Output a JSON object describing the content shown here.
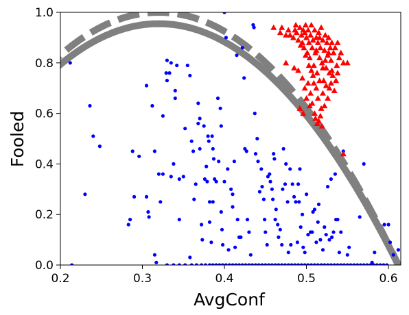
{
  "chart_data": {
    "type": "scatter",
    "xlabel": "AvgConf",
    "ylabel": "Fooled",
    "xlim": [
      0.2,
      0.615
    ],
    "ylim": [
      0.0,
      1.0
    ],
    "x_ticks": [
      0.2,
      0.3,
      0.4,
      0.5,
      0.6
    ],
    "x_tick_labels": [
      "0.2",
      "0.3",
      "0.4",
      "0.5",
      "0.6"
    ],
    "y_ticks": [
      0.0,
      0.2,
      0.4,
      0.6,
      0.8,
      1.0
    ],
    "y_tick_labels": [
      "0.0",
      "0.2",
      "0.4",
      "0.6",
      "0.8",
      "1.0"
    ],
    "grid": false,
    "colors": {
      "blue": "#0000ff",
      "red": "#ff0000",
      "curve": "#808080"
    },
    "series": [
      {
        "marker": "circle",
        "color": "#0000ff",
        "points": [
          [
            0.212,
            0.8
          ],
          [
            0.214,
            0.0
          ],
          [
            0.23,
            0.28
          ],
          [
            0.236,
            0.63
          ],
          [
            0.24,
            0.51
          ],
          [
            0.248,
            0.47
          ],
          [
            0.283,
            0.16
          ],
          [
            0.285,
            0.18
          ],
          [
            0.288,
            0.45
          ],
          [
            0.29,
            0.27
          ],
          [
            0.296,
            0.43
          ],
          [
            0.305,
            0.71
          ],
          [
            0.305,
            0.27
          ],
          [
            0.307,
            0.21
          ],
          [
            0.308,
            0.19
          ],
          [
            0.312,
            0.63
          ],
          [
            0.315,
            0.45
          ],
          [
            0.315,
            0.04
          ],
          [
            0.317,
            0.01
          ],
          [
            0.32,
            0.36
          ],
          [
            0.322,
            0.25
          ],
          [
            0.325,
            0.59
          ],
          [
            0.325,
            0.36
          ],
          [
            0.329,
            0.76
          ],
          [
            0.33,
            0.81
          ],
          [
            0.33,
            0.73
          ],
          [
            0.333,
            0.76
          ],
          [
            0.335,
            0.8
          ],
          [
            0.335,
            0.35
          ],
          [
            0.338,
            0.4
          ],
          [
            0.34,
            0.69
          ],
          [
            0.34,
            0.66
          ],
          [
            0.342,
            0.79
          ],
          [
            0.345,
            0.34
          ],
          [
            0.345,
            0.18
          ],
          [
            0.35,
            0.35
          ],
          [
            0.352,
            0.54
          ],
          [
            0.355,
            0.79
          ],
          [
            0.358,
            0.75
          ],
          [
            0.358,
            0.03
          ],
          [
            0.36,
            0.49
          ],
          [
            0.362,
            0.45
          ],
          [
            0.363,
            0.26
          ],
          [
            0.365,
            0.32
          ],
          [
            0.368,
            0.64
          ],
          [
            0.368,
            0.56
          ],
          [
            0.37,
            0.58
          ],
          [
            0.37,
            0.46
          ],
          [
            0.372,
            0.16
          ],
          [
            0.373,
            0.1
          ],
          [
            0.375,
            0.55
          ],
          [
            0.376,
            0.34
          ],
          [
            0.378,
            0.39
          ],
          [
            0.379,
            0.33
          ],
          [
            0.38,
            0.51
          ],
          [
            0.381,
            0.49
          ],
          [
            0.382,
            0.25
          ],
          [
            0.382,
            0.17
          ],
          [
            0.384,
            0.09
          ],
          [
            0.385,
            0.51
          ],
          [
            0.386,
            0.25
          ],
          [
            0.386,
            0.46
          ],
          [
            0.387,
            0.42
          ],
          [
            0.388,
            0.34
          ],
          [
            0.39,
            0.33
          ],
          [
            0.392,
            0.66
          ],
          [
            0.393,
            0.41
          ],
          [
            0.395,
            0.62
          ],
          [
            0.396,
            0.55
          ],
          [
            0.396,
            0.21
          ],
          [
            0.397,
            0.14
          ],
          [
            0.398,
            0.08
          ],
          [
            0.4,
            0.33
          ],
          [
            0.4,
            1.0
          ],
          [
            0.402,
            0.9
          ],
          [
            0.404,
            0.38
          ],
          [
            0.405,
            0.06
          ],
          [
            0.408,
            0.3
          ],
          [
            0.41,
            0.23
          ],
          [
            0.41,
            0.28
          ],
          [
            0.412,
            0.41
          ],
          [
            0.413,
            0.07
          ],
          [
            0.415,
            0.83
          ],
          [
            0.416,
            0.18
          ],
          [
            0.418,
            0.11
          ],
          [
            0.42,
            0.11
          ],
          [
            0.422,
            0.86
          ],
          [
            0.424,
            0.74
          ],
          [
            0.425,
            0.46
          ],
          [
            0.427,
            0.45
          ],
          [
            0.428,
            0.18
          ],
          [
            0.43,
            0.13
          ],
          [
            0.432,
            0.04
          ],
          [
            0.435,
            0.95
          ],
          [
            0.436,
            0.94
          ],
          [
            0.437,
            0.6
          ],
          [
            0.438,
            0.44
          ],
          [
            0.44,
            0.5
          ],
          [
            0.441,
            0.41
          ],
          [
            0.443,
            0.29
          ],
          [
            0.445,
            0.38
          ],
          [
            0.446,
            0.31
          ],
          [
            0.448,
            0.26
          ],
          [
            0.449,
            0.18
          ],
          [
            0.45,
            0.13
          ],
          [
            0.452,
            0.08
          ],
          [
            0.453,
            0.35
          ],
          [
            0.455,
            0.36
          ],
          [
            0.456,
            0.33
          ],
          [
            0.458,
            0.3
          ],
          [
            0.459,
            0.26
          ],
          [
            0.46,
            0.44
          ],
          [
            0.461,
            0.42
          ],
          [
            0.462,
            0.18
          ],
          [
            0.463,
            0.22
          ],
          [
            0.465,
            0.16
          ],
          [
            0.466,
            0.11
          ],
          [
            0.468,
            0.14
          ],
          [
            0.47,
            0.08
          ],
          [
            0.471,
            0.3
          ],
          [
            0.472,
            0.46
          ],
          [
            0.474,
            0.32
          ],
          [
            0.475,
            0.4
          ],
          [
            0.477,
            0.25
          ],
          [
            0.478,
            0.05
          ],
          [
            0.48,
            0.38
          ],
          [
            0.481,
            0.08
          ],
          [
            0.483,
            0.32
          ],
          [
            0.485,
            0.27
          ],
          [
            0.487,
            0.25
          ],
          [
            0.489,
            0.09
          ],
          [
            0.49,
            0.32
          ],
          [
            0.491,
            0.25
          ],
          [
            0.492,
            0.38
          ],
          [
            0.493,
            0.15
          ],
          [
            0.495,
            0.2
          ],
          [
            0.496,
            0.07
          ],
          [
            0.498,
            0.05
          ],
          [
            0.5,
            0.28
          ],
          [
            0.502,
            0.12
          ],
          [
            0.505,
            0.13
          ],
          [
            0.507,
            0.13
          ],
          [
            0.508,
            0.21
          ],
          [
            0.51,
            0.22
          ],
          [
            0.512,
            0.09
          ],
          [
            0.514,
            0.17
          ],
          [
            0.515,
            0.24
          ],
          [
            0.517,
            0.1
          ],
          [
            0.52,
            0.06
          ],
          [
            0.522,
            0.15
          ],
          [
            0.524,
            0.12
          ],
          [
            0.526,
            0.31
          ],
          [
            0.528,
            0.1
          ],
          [
            0.53,
            0.34
          ],
          [
            0.531,
            0.11
          ],
          [
            0.533,
            0.13
          ],
          [
            0.535,
            0.36
          ],
          [
            0.536,
            0.18
          ],
          [
            0.538,
            0.18
          ],
          [
            0.54,
            0.05
          ],
          [
            0.542,
            0.13
          ],
          [
            0.545,
            0.45
          ],
          [
            0.55,
            0.04
          ],
          [
            0.552,
            0.07
          ],
          [
            0.565,
            0.19
          ],
          [
            0.57,
            0.4
          ],
          [
            0.58,
            0.01
          ],
          [
            0.583,
            0.05
          ],
          [
            0.595,
            0.16
          ],
          [
            0.6,
            0.16
          ],
          [
            0.602,
            0.09
          ],
          [
            0.606,
            0.04
          ],
          [
            0.612,
            0.06
          ]
        ],
        "bottom_row_x": [
          0.33,
          0.338,
          0.345,
          0.352,
          0.36,
          0.366,
          0.372,
          0.377,
          0.382,
          0.386,
          0.39,
          0.394,
          0.398,
          0.402,
          0.406,
          0.41,
          0.414,
          0.418,
          0.422,
          0.426,
          0.43,
          0.434,
          0.438,
          0.442,
          0.446,
          0.45,
          0.454,
          0.458,
          0.462,
          0.466,
          0.47,
          0.474,
          0.478,
          0.482,
          0.486,
          0.49,
          0.494,
          0.498,
          0.502,
          0.506,
          0.51,
          0.514,
          0.518,
          0.522,
          0.526,
          0.53,
          0.534,
          0.538,
          0.542,
          0.546,
          0.55,
          0.554,
          0.558,
          0.562,
          0.566,
          0.57,
          0.574,
          0.578,
          0.582,
          0.586,
          0.59,
          0.594,
          0.598
        ]
      },
      {
        "marker": "triangle",
        "color": "#ff0000",
        "points": [
          [
            0.46,
            0.94
          ],
          [
            0.468,
            0.92
          ],
          [
            0.475,
            0.91
          ],
          [
            0.48,
            0.91
          ],
          [
            0.484,
            0.9
          ],
          [
            0.486,
            0.93
          ],
          [
            0.488,
            0.92
          ],
          [
            0.49,
            0.89
          ],
          [
            0.492,
            0.94
          ],
          [
            0.494,
            0.91
          ],
          [
            0.495,
            0.88
          ],
          [
            0.496,
            0.93
          ],
          [
            0.497,
            0.86
          ],
          [
            0.498,
            0.92
          ],
          [
            0.499,
            0.95
          ],
          [
            0.5,
            0.9
          ],
          [
            0.501,
            0.84
          ],
          [
            0.502,
            0.93
          ],
          [
            0.503,
            0.88
          ],
          [
            0.504,
            0.82
          ],
          [
            0.505,
            0.91
          ],
          [
            0.506,
            0.95
          ],
          [
            0.507,
            0.86
          ],
          [
            0.508,
            0.89
          ],
          [
            0.509,
            0.79
          ],
          [
            0.51,
            0.93
          ],
          [
            0.511,
            0.84
          ],
          [
            0.512,
            0.9
          ],
          [
            0.513,
            0.76
          ],
          [
            0.514,
            0.88
          ],
          [
            0.515,
            0.92
          ],
          [
            0.516,
            0.82
          ],
          [
            0.517,
            0.86
          ],
          [
            0.518,
            0.94
          ],
          [
            0.519,
            0.8
          ],
          [
            0.52,
            0.89
          ],
          [
            0.521,
            0.73
          ],
          [
            0.522,
            0.85
          ],
          [
            0.523,
            0.91
          ],
          [
            0.524,
            0.78
          ],
          [
            0.525,
            0.88
          ],
          [
            0.526,
            0.83
          ],
          [
            0.527,
            0.9
          ],
          [
            0.528,
            0.76
          ],
          [
            0.529,
            0.86
          ],
          [
            0.53,
            0.81
          ],
          [
            0.531,
            0.88
          ],
          [
            0.533,
            0.84
          ],
          [
            0.535,
            0.86
          ],
          [
            0.537,
            0.79
          ],
          [
            0.54,
            0.82
          ],
          [
            0.545,
            0.8
          ],
          [
            0.55,
            0.8
          ],
          [
            0.475,
            0.8
          ],
          [
            0.485,
            0.78
          ],
          [
            0.49,
            0.77
          ],
          [
            0.495,
            0.74
          ],
          [
            0.498,
            0.7
          ],
          [
            0.5,
            0.66
          ],
          [
            0.502,
            0.72
          ],
          [
            0.505,
            0.68
          ],
          [
            0.507,
            0.64
          ],
          [
            0.508,
            0.75
          ],
          [
            0.51,
            0.6
          ],
          [
            0.512,
            0.7
          ],
          [
            0.514,
            0.66
          ],
          [
            0.515,
            0.57
          ],
          [
            0.516,
            0.73
          ],
          [
            0.518,
            0.62
          ],
          [
            0.52,
            0.68
          ],
          [
            0.522,
            0.63
          ],
          [
            0.524,
            0.71
          ],
          [
            0.526,
            0.66
          ],
          [
            0.528,
            0.7
          ],
          [
            0.53,
            0.72
          ],
          [
            0.532,
            0.75
          ],
          [
            0.534,
            0.69
          ],
          [
            0.536,
            0.73
          ],
          [
            0.538,
            0.76
          ],
          [
            0.492,
            0.62
          ],
          [
            0.496,
            0.6
          ],
          [
            0.504,
            0.63
          ],
          [
            0.511,
            0.58
          ],
          [
            0.513,
            0.56
          ],
          [
            0.517,
            0.59
          ],
          [
            0.519,
            0.55
          ],
          [
            0.47,
            0.94
          ],
          [
            0.478,
            0.93
          ],
          [
            0.487,
            0.95
          ],
          [
            0.493,
            0.87
          ],
          [
            0.499,
            0.83
          ],
          [
            0.503,
            0.79
          ],
          [
            0.506,
            0.77
          ],
          [
            0.509,
            0.72
          ],
          [
            0.512,
            0.85
          ],
          [
            0.516,
            0.9
          ],
          [
            0.52,
            0.78
          ],
          [
            0.523,
            0.81
          ],
          [
            0.527,
            0.84
          ],
          [
            0.531,
            0.77
          ],
          [
            0.538,
            0.88
          ],
          [
            0.542,
            0.84
          ],
          [
            0.545,
            0.44
          ]
        ]
      }
    ],
    "curves": [
      {
        "style": "solid",
        "color": "#808080",
        "peak_x": 0.32,
        "peak_y": 0.955,
        "x_at_zero": 0.612
      },
      {
        "style": "dashed",
        "color": "#808080",
        "peak_x": 0.32,
        "peak_y": 1.0,
        "x_at_zero": 0.612
      }
    ]
  }
}
